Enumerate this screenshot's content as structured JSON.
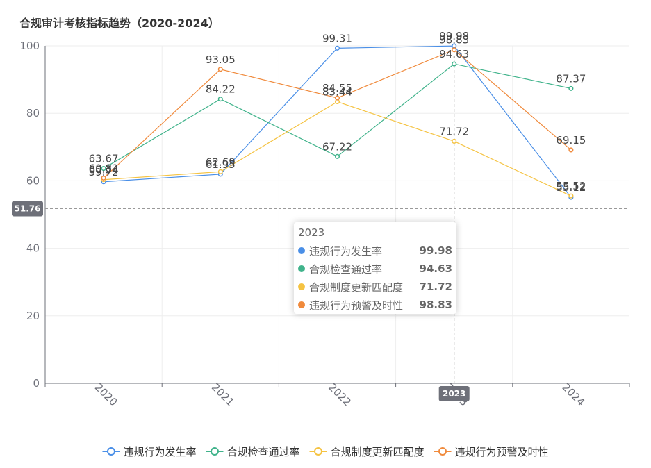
{
  "chart_data": {
    "type": "line",
    "title": "合规审计考核指标趋势（2020-2024）",
    "categories": [
      "2020",
      "2021",
      "2022",
      "2023",
      "2024"
    ],
    "ylim": [
      0,
      100
    ],
    "yticks": [
      0,
      20,
      40,
      60,
      80,
      100
    ],
    "series": [
      {
        "name": "违规行为发生率",
        "color": "#5470c6",
        "line_color": "#4a8fe7",
        "values": [
          59.72,
          61.95,
          99.31,
          99.98,
          55.12
        ]
      },
      {
        "name": "合规检查通过率",
        "color": "#3ba272",
        "line_color": "#40b38b",
        "values": [
          63.67,
          84.22,
          67.22,
          94.63,
          87.37
        ]
      },
      {
        "name": "合规制度更新匹配度",
        "color": "#f3c13a",
        "line_color": "#f5c342",
        "values": [
          60.34,
          62.69,
          83.44,
          71.72,
          55.52
        ]
      },
      {
        "name": "违规行为预警及时性",
        "color": "#f08a3c",
        "line_color": "#f08a3c",
        "values": [
          60.82,
          93.05,
          84.55,
          98.83,
          69.15
        ]
      }
    ],
    "crosshair": {
      "x": "2023",
      "y": 51.76
    },
    "tooltip": {
      "title": "2023",
      "rows": [
        {
          "name": "违规行为发生率",
          "value": "99.98",
          "color": "#4a8fe7"
        },
        {
          "name": "合规检查通过率",
          "value": "94.63",
          "color": "#40b38b"
        },
        {
          "name": "合规制度更新匹配度",
          "value": "71.72",
          "color": "#f5c342"
        },
        {
          "name": "违规行为预警及时性",
          "value": "98.83",
          "color": "#f08a3c"
        }
      ]
    }
  }
}
